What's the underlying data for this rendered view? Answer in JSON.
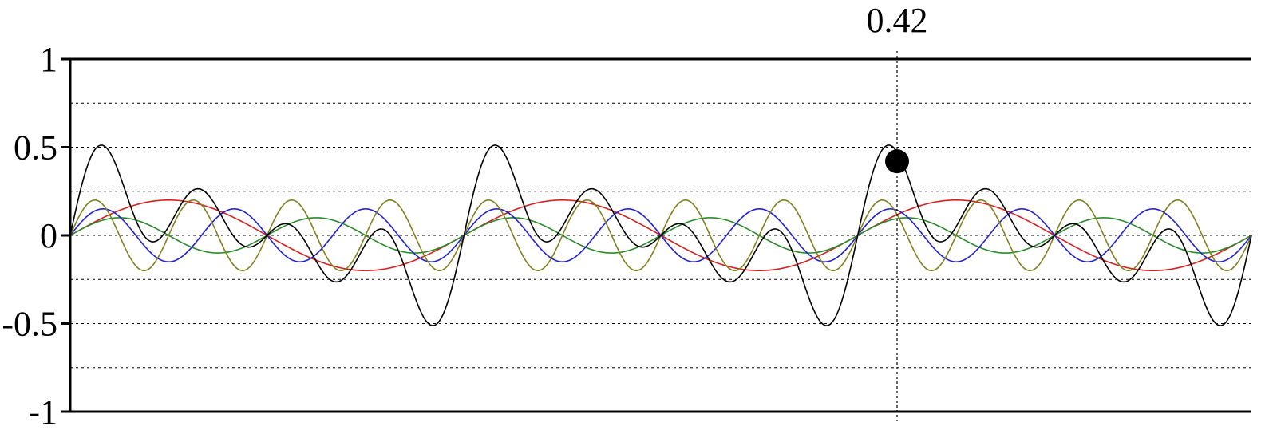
{
  "chart_data": {
    "type": "line",
    "title": "",
    "xlabel": "",
    "ylabel": "",
    "xlim": [
      0,
      0.6
    ],
    "ylim": [
      -1,
      1
    ],
    "y_ticks": [
      {
        "value": 1,
        "label": "1"
      },
      {
        "value": 0.5,
        "label": "0.5"
      },
      {
        "value": 0,
        "label": "0"
      },
      {
        "value": -0.5,
        "label": "-0.5"
      },
      {
        "value": -1,
        "label": "-1"
      }
    ],
    "grid_y": [
      0.75,
      0.5,
      0.25,
      0,
      -0.25,
      -0.5,
      -0.75
    ],
    "grid": true,
    "series": [
      {
        "color": "#d62020",
        "amplitude": 0.2,
        "frequency": 5,
        "function": "sin"
      },
      {
        "color": "#2a8a2a",
        "amplitude": 0.1,
        "frequency": 10,
        "function": "sin"
      },
      {
        "color": "#2020d0",
        "amplitude": 0.15,
        "frequency": 15,
        "function": "sin"
      },
      {
        "color": "#808020",
        "amplitude": 0.2,
        "frequency": 20,
        "function": "sin"
      },
      {
        "color": "#000000",
        "function": "sum of the other four series"
      }
    ],
    "cursor": {
      "x": 0.42,
      "label": "0.42",
      "marker_y": 0.42
    }
  }
}
